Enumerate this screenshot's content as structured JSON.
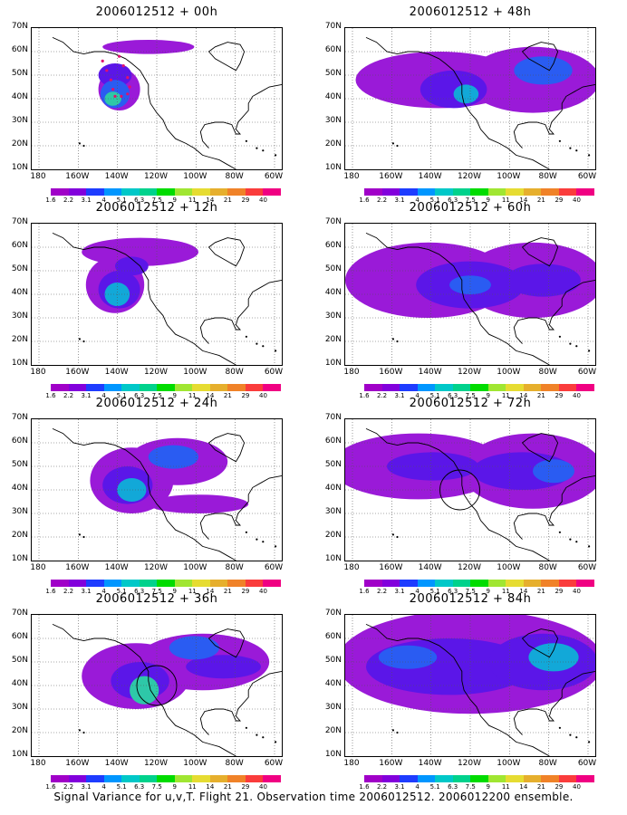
{
  "panels": [
    {
      "title": "2006012512 + 00h",
      "col": 0,
      "row": 0,
      "stage": 0,
      "track": true
    },
    {
      "title": "2006012512 + 48h",
      "col": 1,
      "row": 0,
      "stage": 4
    },
    {
      "title": "2006012512 + 12h",
      "col": 0,
      "row": 1,
      "stage": 1
    },
    {
      "title": "2006012512 + 60h",
      "col": 1,
      "row": 1,
      "stage": 5
    },
    {
      "title": "2006012512 + 24h",
      "col": 0,
      "row": 2,
      "stage": 2
    },
    {
      "title": "2006012512 + 72h",
      "col": 1,
      "row": 2,
      "stage": 6,
      "circle": true
    },
    {
      "title": "2006012512 + 36h",
      "col": 0,
      "row": 3,
      "stage": 3,
      "circle": true
    },
    {
      "title": "2006012512 + 84h",
      "col": 1,
      "row": 3,
      "stage": 7
    }
  ],
  "lat_labels": [
    "70N",
    "60N",
    "50N",
    "40N",
    "30N",
    "20N",
    "10N"
  ],
  "lon_labels": [
    "180",
    "160W",
    "140W",
    "120W",
    "100W",
    "80W",
    "60W"
  ],
  "colorbar": {
    "labels": [
      "1.6",
      "2.2",
      "3.1",
      "4",
      "5.1",
      "6.3",
      "7.5",
      "9",
      "11",
      "14",
      "21",
      "29",
      "40"
    ],
    "colors": [
      "#a000c8",
      "#8200dc",
      "#1e3cff",
      "#0096ff",
      "#00c8c8",
      "#00d28c",
      "#00dc00",
      "#a0e632",
      "#e6dc32",
      "#e6af2d",
      "#f08228",
      "#fa3c3c",
      "#f00082"
    ]
  },
  "caption": "Signal Variance for u,v,T. Flight 21. Observation time 2006012512. 2006012200 ensemble."
}
